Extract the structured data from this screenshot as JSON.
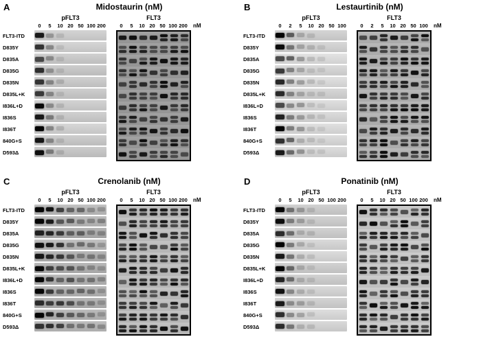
{
  "figure": {
    "row_labels": [
      "FLT3-ITD",
      "D835Y",
      "D835A",
      "D835G",
      "D835N",
      "D835L+K",
      "I836L+D",
      "I836S",
      "I836T",
      "840G+S",
      "D593Δ"
    ],
    "panels": [
      {
        "letter": "A",
        "title": "Midostaurin (nM)",
        "unit": "nM",
        "blots": [
          {
            "label": "pFLT3",
            "concentrations": [
              "0",
              "5",
              "10",
              "20",
              "50",
              "100",
              "200"
            ],
            "style": "strips",
            "shade": "#cbcbcb",
            "pattern": "decay",
            "decay": 0.38,
            "base": 0.85
          },
          {
            "label": "FLT3",
            "concentrations": [
              "0",
              "5",
              "10",
              "20",
              "50",
              "100",
              "200"
            ],
            "style": "bordered",
            "shade": "#9c9c9c",
            "pattern": "uniform"
          }
        ]
      },
      {
        "letter": "B",
        "title": "Lestaurtinib (nM)",
        "unit": "nM",
        "blots": [
          {
            "label": "pFLT3",
            "concentrations": [
              "0",
              "2",
              "5",
              "10",
              "20",
              "50",
              "100"
            ],
            "style": "strips",
            "shade": "#d4d4d4",
            "pattern": "decay",
            "decay": 0.55,
            "base": 0.85
          },
          {
            "label": "FLT3",
            "concentrations": [
              "0",
              "2",
              "5",
              "10",
              "20",
              "50",
              "100"
            ],
            "style": "bordered",
            "shade": "#b2b2b2",
            "pattern": "uniform"
          }
        ]
      },
      {
        "letter": "C",
        "title": "Crenolanib (nM)",
        "unit": "nM",
        "blots": [
          {
            "label": "pFLT3",
            "concentrations": [
              "0",
              "5",
              "10",
              "20",
              "50",
              "100",
              "200"
            ],
            "style": "strips",
            "shade": "#b4b4b4",
            "pattern": "decay",
            "decay": 0.8,
            "base": 0.95
          },
          {
            "label": "FLT3",
            "concentrations": [
              "0",
              "5",
              "10",
              "20",
              "50",
              "100",
              "200"
            ],
            "style": "bordered",
            "shade": "#bdbdbd",
            "pattern": "uniform"
          }
        ]
      },
      {
        "letter": "D",
        "title": "Ponatinib (nM)",
        "unit": "nM",
        "blots": [
          {
            "label": "pFLT3",
            "concentrations": [
              "0",
              "5",
              "10",
              "20",
              "50",
              "100",
              "200"
            ],
            "style": "strips",
            "shade": "#cfcfcf",
            "pattern": "decay",
            "decay": 0.5,
            "base": 0.85
          },
          {
            "label": "FLT3",
            "concentrations": [
              "0",
              "5",
              "10",
              "20",
              "50",
              "100",
              "200"
            ],
            "style": "bordered",
            "shade": "#c6c6c6",
            "pattern": "uniform"
          }
        ]
      }
    ]
  }
}
